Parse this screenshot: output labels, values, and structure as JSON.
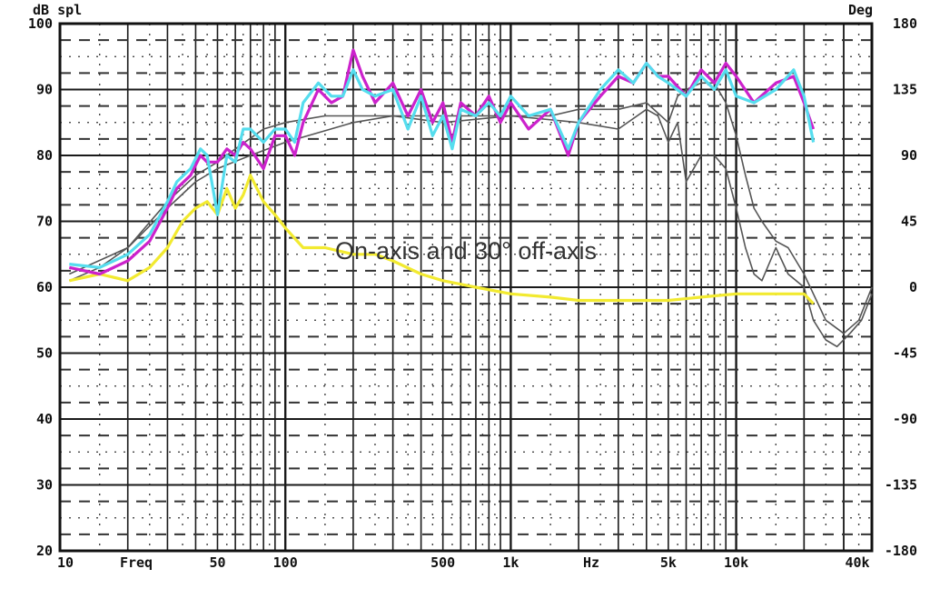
{
  "chart_data": {
    "type": "line",
    "left_axis_label": "dB spl",
    "right_axis_label": "Deg",
    "x_axis_label": "Freq",
    "x_unit_label": "Hz",
    "annotation": "On-axis and 30° off-axis",
    "x_scale": "log",
    "xlim": [
      10,
      40000
    ],
    "ylim_left": [
      20,
      100
    ],
    "ylim_right": [
      -180,
      180
    ],
    "grid": true,
    "left_ticks": [
      100,
      90,
      80,
      70,
      60,
      50,
      40,
      30,
      20
    ],
    "right_ticks": [
      180,
      135,
      90,
      45,
      0,
      -45,
      -90,
      -135,
      -180
    ],
    "x_tick_labels": [
      {
        "value": 10,
        "label": "10"
      },
      {
        "value": 50,
        "label": "50"
      },
      {
        "value": 100,
        "label": "100"
      },
      {
        "value": 500,
        "label": "500"
      },
      {
        "value": 1000,
        "label": "1k"
      },
      {
        "value": 5000,
        "label": "5k"
      },
      {
        "value": 10000,
        "label": "10k"
      },
      {
        "value": 40000,
        "label": "40k"
      }
    ],
    "series": [
      {
        "color": "#cc22cc",
        "axis": "left",
        "x": [
          11,
          15,
          20,
          25,
          30,
          33,
          38,
          42,
          45,
          50,
          55,
          60,
          65,
          70,
          80,
          90,
          100,
          110,
          120,
          140,
          160,
          180,
          200,
          220,
          250,
          300,
          350,
          400,
          450,
          500,
          550,
          600,
          700,
          800,
          900,
          1000,
          1200,
          1500,
          1800,
          2000,
          2500,
          3000,
          3500,
          4000,
          4500,
          5000,
          6000,
          7000,
          8000,
          9000,
          10000,
          12000,
          15000,
          18000,
          20000,
          22000
        ],
        "values": [
          63,
          62,
          64,
          67,
          72,
          75,
          77,
          80,
          79,
          79,
          81,
          80,
          82,
          81,
          78,
          83,
          83,
          80,
          85,
          90,
          88,
          89,
          96,
          92,
          88,
          91,
          86,
          90,
          85,
          88,
          82,
          88,
          86,
          89,
          85,
          88,
          84,
          87,
          80,
          85,
          89,
          92,
          91,
          94,
          92,
          92,
          89,
          93,
          91,
          94,
          92,
          88,
          91,
          92,
          88,
          84
        ]
      },
      {
        "color": "#55ddee",
        "axis": "left",
        "x": [
          11,
          15,
          20,
          25,
          30,
          33,
          38,
          42,
          45,
          50,
          55,
          60,
          65,
          70,
          80,
          90,
          100,
          110,
          120,
          140,
          160,
          180,
          200,
          220,
          250,
          300,
          350,
          400,
          450,
          500,
          550,
          600,
          700,
          800,
          900,
          1000,
          1200,
          1500,
          1800,
          2000,
          2500,
          3000,
          3500,
          4000,
          4500,
          5000,
          6000,
          7000,
          8000,
          9000,
          10000,
          12000,
          15000,
          18000,
          20000,
          22000
        ],
        "values": [
          63.5,
          63,
          65,
          68,
          73,
          76,
          78,
          81,
          80,
          71,
          80,
          79,
          84,
          84,
          82,
          84,
          84,
          82,
          88,
          91,
          89,
          89,
          93,
          90,
          89,
          90,
          84,
          89,
          83,
          86,
          81,
          87,
          86,
          88,
          86,
          89,
          86,
          87,
          81,
          85,
          90,
          93,
          91,
          94,
          92,
          91,
          89,
          92,
          90,
          93,
          89,
          88,
          90,
          93,
          89,
          82
        ]
      },
      {
        "color": "#f2ea30",
        "axis": "left",
        "x": [
          11,
          15,
          20,
          25,
          30,
          35,
          40,
          45,
          50,
          55,
          60,
          65,
          70,
          80,
          90,
          100,
          120,
          150,
          200,
          250,
          300,
          400,
          500,
          700,
          1000,
          1500,
          2000,
          3000,
          5000,
          7000,
          10000,
          15000,
          20000,
          22000
        ],
        "values": [
          61,
          62,
          61,
          63,
          66,
          70,
          72,
          73,
          71,
          75,
          72,
          74,
          77,
          73,
          71,
          69,
          66,
          66,
          65,
          65,
          64,
          62,
          61,
          60,
          59,
          58.5,
          58,
          58,
          58,
          58.5,
          59,
          59,
          59,
          57.5
        ]
      },
      {
        "color": "#555555",
        "axis": "left",
        "x": [
          11,
          15,
          20,
          30,
          40,
          50,
          60,
          80,
          100,
          150,
          200,
          300,
          500,
          700,
          1000,
          1500,
          2000,
          3000,
          4000,
          5000,
          5500,
          6000,
          7000,
          8000,
          9000,
          10000,
          11000,
          12000,
          13000,
          15000,
          17000,
          20000,
          22000,
          25000,
          30000,
          35000,
          40000
        ],
        "values": [
          61,
          63,
          66,
          73,
          77,
          79,
          81,
          84,
          85,
          86,
          86,
          86,
          86,
          86,
          86,
          86,
          87,
          87,
          88,
          85,
          89,
          90,
          91,
          91,
          88,
          83,
          77,
          72,
          70,
          67,
          66,
          62,
          59,
          55,
          53,
          55,
          60
        ]
      },
      {
        "color": "#555555",
        "axis": "left",
        "x": [
          11,
          20,
          30,
          40,
          50,
          70,
          100,
          200,
          300,
          500,
          1000,
          2000,
          3000,
          4000,
          4500,
          5000,
          5500,
          6000,
          7000,
          8000,
          9000,
          10000,
          11000,
          12000,
          13000,
          15000,
          17000,
          20000,
          22000,
          25000,
          28000,
          32000,
          36000,
          40000
        ],
        "values": [
          62,
          66,
          72,
          76,
          78,
          80,
          82,
          85,
          86,
          85,
          86,
          85,
          84,
          87,
          86,
          82,
          85,
          76,
          80,
          80,
          78,
          72,
          66,
          62,
          61,
          66,
          62,
          60,
          55,
          52,
          51,
          53,
          55,
          59
        ]
      }
    ]
  }
}
